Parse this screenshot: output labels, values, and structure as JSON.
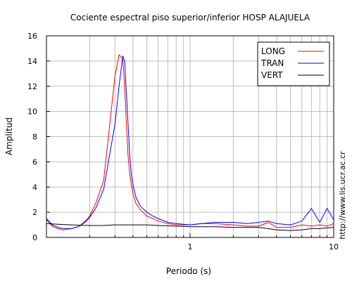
{
  "chart_data": {
    "type": "line",
    "title": "Cociente espectral piso superior/inferior  HOSP ALAJUELA",
    "xlabel": "Periodo (s)",
    "ylabel": "Amplitud",
    "side_label": "http://www.lis.ucr.ac.cr",
    "x_scale": "log",
    "xlim": [
      0.1,
      10
    ],
    "ylim": [
      0,
      16
    ],
    "yticks": [
      0,
      2,
      4,
      6,
      8,
      10,
      12,
      14,
      16
    ],
    "yticklabels": [
      "0",
      "2",
      "4",
      "6",
      "8",
      "10",
      "12",
      "14",
      "16"
    ],
    "xticks": [
      1,
      10
    ],
    "xticklabels": [
      "1",
      "10"
    ],
    "grid": true,
    "legend_position": "top-right",
    "series": [
      {
        "name": "LONG",
        "color": "#ff0000",
        "x": [
          0.1,
          0.11,
          0.12,
          0.13,
          0.15,
          0.17,
          0.19,
          0.2,
          0.22,
          0.25,
          0.27,
          0.3,
          0.32,
          0.34,
          0.35,
          0.36,
          0.37,
          0.38,
          0.39,
          0.4,
          0.42,
          0.45,
          0.5,
          0.55,
          0.6,
          0.7,
          0.8,
          1.0,
          1.2,
          1.5,
          2.0,
          2.5,
          3.0,
          3.5,
          4.0,
          5.0,
          6.0,
          7.0,
          8.0,
          9.0,
          10.0
        ],
        "y": [
          1.4,
          0.9,
          0.7,
          0.6,
          0.7,
          0.9,
          1.4,
          1.7,
          2.7,
          4.5,
          8.0,
          12.8,
          14.5,
          14.2,
          12.0,
          9.0,
          6.5,
          5.0,
          4.2,
          3.5,
          2.7,
          2.2,
          1.7,
          1.5,
          1.3,
          1.1,
          1.0,
          1.0,
          1.1,
          1.1,
          1.0,
          0.9,
          0.9,
          1.2,
          0.8,
          0.8,
          1.0,
          0.9,
          1.0,
          0.9,
          1.1
        ]
      },
      {
        "name": "TRAN",
        "color": "#0000ff",
        "x": [
          0.1,
          0.11,
          0.12,
          0.13,
          0.15,
          0.17,
          0.19,
          0.2,
          0.22,
          0.25,
          0.27,
          0.3,
          0.32,
          0.34,
          0.35,
          0.36,
          0.37,
          0.38,
          0.39,
          0.4,
          0.42,
          0.45,
          0.5,
          0.55,
          0.6,
          0.7,
          0.8,
          1.0,
          1.2,
          1.5,
          2.0,
          2.5,
          3.0,
          3.5,
          4.0,
          5.0,
          6.0,
          7.0,
          8.0,
          9.0,
          10.0
        ],
        "y": [
          1.5,
          1.0,
          0.8,
          0.7,
          0.7,
          0.9,
          1.3,
          1.6,
          2.3,
          3.8,
          6.0,
          9.0,
          12.0,
          14.4,
          14.0,
          11.5,
          9.0,
          6.5,
          5.0,
          4.2,
          3.2,
          2.5,
          2.0,
          1.7,
          1.5,
          1.2,
          1.1,
          1.0,
          1.1,
          1.2,
          1.2,
          1.1,
          1.2,
          1.3,
          1.1,
          1.0,
          1.3,
          2.3,
          1.2,
          2.3,
          1.4
        ]
      },
      {
        "name": "VERT",
        "color": "#000000",
        "x": [
          0.1,
          0.12,
          0.15,
          0.2,
          0.25,
          0.3,
          0.4,
          0.5,
          0.6,
          0.8,
          1.0,
          1.5,
          2.0,
          3.0,
          4.0,
          5.0,
          6.0,
          7.0,
          8.0,
          10.0
        ],
        "y": [
          1.1,
          1.05,
          1.0,
          0.95,
          0.95,
          1.0,
          1.0,
          1.0,
          0.95,
          0.9,
          0.85,
          0.85,
          0.8,
          0.8,
          0.6,
          0.55,
          0.6,
          0.7,
          0.7,
          0.8
        ]
      }
    ]
  }
}
